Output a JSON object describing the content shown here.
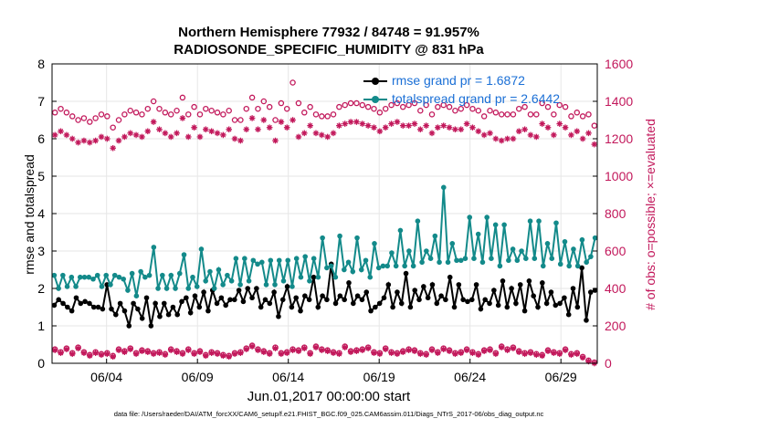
{
  "title_line1": "Northern Hemisphere 77932 / 84748 = 91.957%",
  "title_line2": "RADIOSONDE_SPECIFIC_HUMIDITY @ 831 hPa",
  "footnote": "data file: /Users/raeder/DAI/ATM_forcXX/CAM6_setup/f.e21.FHIST_BGC.f09_025.CAM6assim.011/Diags_NTrS_2017-06/obs_diag_output.nc",
  "colors": {
    "rmse": "#000000",
    "spread": "#138a8a",
    "obs": "#c2185b",
    "legend_text": "#1a6fd6"
  },
  "chart_data": {
    "type": "line",
    "xlabel": "Jun.01,2017 00:00:00 start",
    "ylabel": "rmse and totalspread",
    "ylabel_right": "# of obs: o=possible; ×=evaluated",
    "xlim": [
      0,
      60
    ],
    "ylim": [
      0,
      8
    ],
    "ylim_right": [
      0,
      1600
    ],
    "x_ticks": [
      {
        "x": 6,
        "label": "06/04"
      },
      {
        "x": 16,
        "label": "06/09"
      },
      {
        "x": 26,
        "label": "06/14"
      },
      {
        "x": 36,
        "label": "06/19"
      },
      {
        "x": 46,
        "label": "06/24"
      },
      {
        "x": 56,
        "label": "06/29"
      }
    ],
    "y_ticks": [
      "0",
      "1",
      "2",
      "3",
      "4",
      "5",
      "6",
      "7",
      "8"
    ],
    "y_ticks_right": [
      "0",
      "200",
      "400",
      "600",
      "800",
      "1000",
      "1200",
      "1400",
      "1600"
    ],
    "legend": [
      {
        "label": "rmse grand pr = 1.6872",
        "series": "rmse"
      },
      {
        "label": "totalspread grand pr = 2.6442",
        "series": "totalspread"
      }
    ],
    "series": [
      {
        "name": "rmse",
        "axis": "left",
        "values": [
          1.55,
          1.7,
          1.6,
          1.5,
          1.4,
          1.75,
          1.6,
          1.65,
          1.6,
          1.5,
          1.5,
          1.45,
          2.1,
          1.45,
          1.3,
          1.6,
          1.4,
          1.0,
          1.6,
          1.45,
          1.2,
          1.75,
          1.0,
          1.6,
          1.25,
          1.6,
          1.3,
          1.5,
          1.3,
          1.65,
          1.75,
          1.35,
          1.8,
          1.5,
          1.9,
          1.4,
          1.95,
          1.6,
          1.75,
          1.55,
          1.7,
          1.7,
          1.95,
          1.65,
          2.0,
          1.75,
          2.0,
          1.5,
          1.7,
          1.6,
          1.9,
          1.25,
          1.7,
          2.05,
          1.5,
          1.75,
          1.4,
          1.8,
          1.7,
          2.3,
          1.5,
          1.8,
          1.7,
          2.65,
          1.6,
          1.8,
          1.7,
          2.15,
          1.6,
          1.8,
          1.7,
          1.9,
          1.4,
          1.5,
          1.6,
          1.75,
          2.1,
          1.5,
          1.9,
          1.6,
          2.4,
          1.5,
          1.95,
          1.7,
          2.05,
          1.75,
          2.1,
          1.6,
          1.8,
          1.7,
          2.3,
          1.5,
          2.1,
          1.7,
          1.65,
          1.7,
          2.1,
          1.45,
          1.7,
          1.6,
          1.95,
          1.55,
          2.2,
          1.5,
          2.0,
          1.6,
          2.1,
          1.4,
          2.2,
          1.8,
          1.5,
          2.15,
          1.6,
          1.9,
          1.55,
          1.6,
          1.75,
          1.3,
          2.0,
          1.5,
          2.55,
          1.15,
          1.9,
          1.95
        ]
      },
      {
        "name": "totalspread",
        "axis": "left",
        "values": [
          2.35,
          2.0,
          2.35,
          2.05,
          2.3,
          2.05,
          2.3,
          2.3,
          2.3,
          2.25,
          2.35,
          2.05,
          2.35,
          2.1,
          2.35,
          2.3,
          2.25,
          1.95,
          2.4,
          1.8,
          2.45,
          2.3,
          2.35,
          3.1,
          2.0,
          2.35,
          2.0,
          2.35,
          2.0,
          2.4,
          2.9,
          2.0,
          2.3,
          2.05,
          3.05,
          2.2,
          2.45,
          2.0,
          2.5,
          2.1,
          2.35,
          2.2,
          2.8,
          2.1,
          2.8,
          2.2,
          2.75,
          2.65,
          2.7,
          2.1,
          2.75,
          2.1,
          2.75,
          2.2,
          2.75,
          2.05,
          2.8,
          2.3,
          2.85,
          2.2,
          2.8,
          2.3,
          3.35,
          2.55,
          2.6,
          2.3,
          3.4,
          2.5,
          2.7,
          2.45,
          3.35,
          2.5,
          2.75,
          2.3,
          3.2,
          2.55,
          2.6,
          2.6,
          2.95,
          2.6,
          3.55,
          2.6,
          3.0,
          2.6,
          3.8,
          2.7,
          3.0,
          2.8,
          3.4,
          2.7,
          4.7,
          2.7,
          3.2,
          2.75,
          2.75,
          2.8,
          3.9,
          2.8,
          3.45,
          2.7,
          3.9,
          2.8,
          3.7,
          2.6,
          3.7,
          2.75,
          3.05,
          2.75,
          3.0,
          2.8,
          3.8,
          2.8,
          3.8,
          2.6,
          3.2,
          2.8,
          3.75,
          2.65,
          3.25,
          2.6,
          3.05,
          2.6,
          3.3,
          2.7,
          2.85,
          3.35
        ]
      },
      {
        "name": "possible",
        "axis": "right",
        "marker": "o",
        "values": [
          1340,
          1360,
          1340,
          1320,
          1300,
          1310,
          1290,
          1310,
          1330,
          1320,
          1260,
          1300,
          1330,
          1350,
          1340,
          1330,
          1360,
          1400,
          1360,
          1340,
          1330,
          1350,
          1420,
          1330,
          1370,
          1330,
          1360,
          1350,
          1340,
          1330,
          1350,
          1300,
          1300,
          1360,
          1420,
          1360,
          1400,
          1370,
          1300,
          1390,
          1360,
          1500,
          1390,
          1340,
          1370,
          1330,
          1320,
          1320,
          1330,
          1370,
          1380,
          1390,
          1390,
          1380,
          1370,
          1360,
          1340,
          1360,
          1380,
          1390,
          1370,
          1380,
          1390,
          1350,
          1380,
          1330,
          1370,
          1380,
          1370,
          1350,
          1360,
          1380,
          1360,
          1350,
          1320,
          1350,
          1340,
          1330,
          1330,
          1330,
          1360,
          1370,
          1330,
          1330,
          1390,
          1370,
          1330,
          1380,
          1370,
          1320,
          1340,
          1320,
          1330,
          1270
        ]
      },
      {
        "name": "evaluated",
        "axis": "right",
        "marker": "x",
        "values": [
          1220,
          1240,
          1220,
          1200,
          1180,
          1190,
          1180,
          1190,
          1210,
          1200,
          1150,
          1190,
          1210,
          1230,
          1220,
          1210,
          1240,
          1290,
          1250,
          1230,
          1210,
          1230,
          1310,
          1210,
          1260,
          1210,
          1250,
          1240,
          1230,
          1220,
          1250,
          1200,
          1190,
          1250,
          1310,
          1250,
          1300,
          1260,
          1190,
          1290,
          1260,
          1300,
          1210,
          1230,
          1270,
          1230,
          1220,
          1210,
          1230,
          1270,
          1280,
          1290,
          1290,
          1280,
          1270,
          1260,
          1240,
          1260,
          1280,
          1290,
          1270,
          1270,
          1280,
          1250,
          1270,
          1230,
          1260,
          1270,
          1260,
          1250,
          1250,
          1280,
          1260,
          1240,
          1220,
          1230,
          1200,
          1190,
          1200,
          1200,
          1240,
          1250,
          1220,
          1210,
          1280,
          1260,
          1220,
          1280,
          1260,
          1220,
          1240,
          1200,
          1230,
          1170
        ]
      },
      {
        "name": "possible_lower",
        "axis": "right",
        "marker": "o",
        "values": [
          75,
          60,
          80,
          55,
          85,
          60,
          45,
          60,
          50,
          55,
          40,
          75,
          65,
          80,
          55,
          70,
          65,
          55,
          60,
          50,
          75,
          65,
          55,
          75,
          55,
          65,
          45,
          60,
          55,
          45,
          40,
          55,
          60,
          80,
          95,
          75,
          65,
          55,
          85,
          55,
          60,
          75,
          70,
          85,
          55,
          90,
          75,
          70,
          60,
          55,
          90,
          65,
          70,
          75,
          85,
          60,
          55,
          80,
          60,
          55,
          65,
          75,
          70,
          55,
          50,
          75,
          60,
          80,
          70,
          55,
          60,
          75,
          60,
          50,
          70,
          75,
          55,
          90,
          75,
          85,
          65,
          55,
          60,
          50,
          45,
          70,
          60,
          55,
          75,
          50,
          55,
          35,
          15,
          5
        ]
      },
      {
        "name": "evaluated_lower",
        "axis": "right",
        "marker": "x",
        "values": [
          70,
          55,
          75,
          50,
          80,
          55,
          40,
          55,
          45,
          50,
          35,
          70,
          60,
          75,
          50,
          65,
          60,
          50,
          55,
          45,
          70,
          60,
          50,
          70,
          50,
          60,
          40,
          55,
          50,
          40,
          35,
          50,
          55,
          75,
          90,
          70,
          60,
          50,
          80,
          50,
          55,
          70,
          65,
          80,
          50,
          85,
          70,
          65,
          55,
          50,
          85,
          60,
          65,
          70,
          80,
          55,
          50,
          75,
          55,
          50,
          60,
          70,
          65,
          50,
          45,
          70,
          55,
          75,
          65,
          50,
          55,
          70,
          55,
          45,
          65,
          70,
          50,
          85,
          70,
          80,
          60,
          50,
          55,
          45,
          40,
          65,
          55,
          50,
          70,
          45,
          50,
          30,
          10,
          0
        ]
      }
    ]
  }
}
